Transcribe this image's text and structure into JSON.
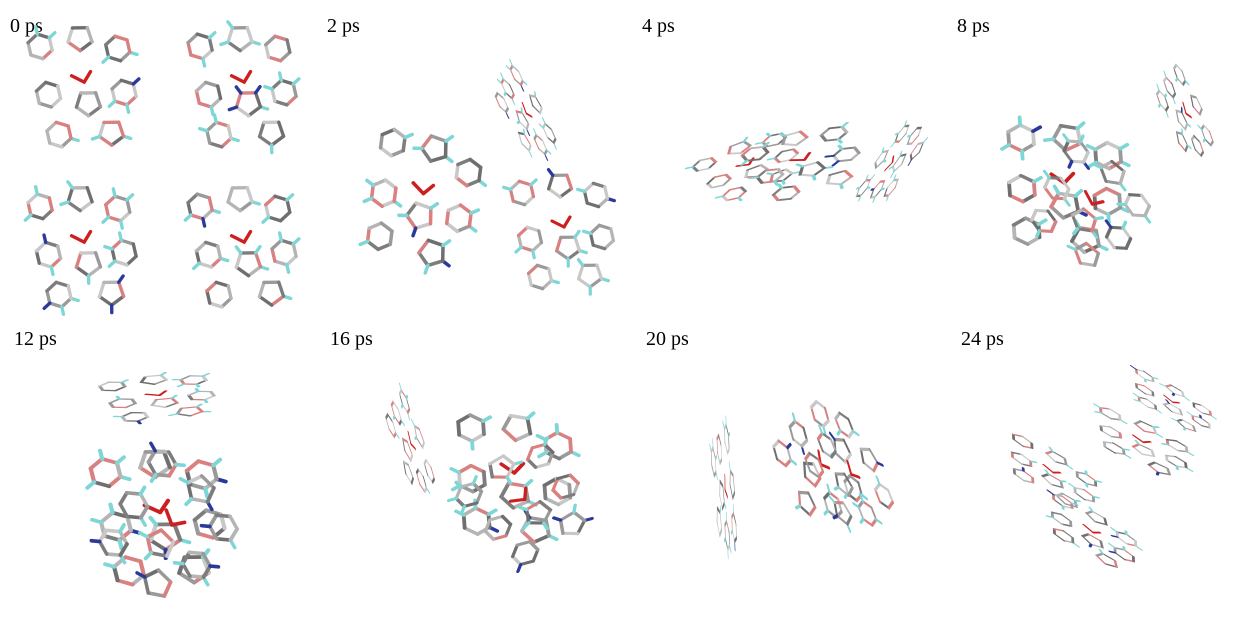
{
  "panels": [
    {
      "label": "0 ps"
    },
    {
      "label": "2 ps"
    },
    {
      "label": "4 ps"
    },
    {
      "label": "8 ps"
    },
    {
      "label": "12 ps"
    },
    {
      "label": "16 ps"
    },
    {
      "label": "20 ps"
    },
    {
      "label": "24 ps"
    }
  ]
}
